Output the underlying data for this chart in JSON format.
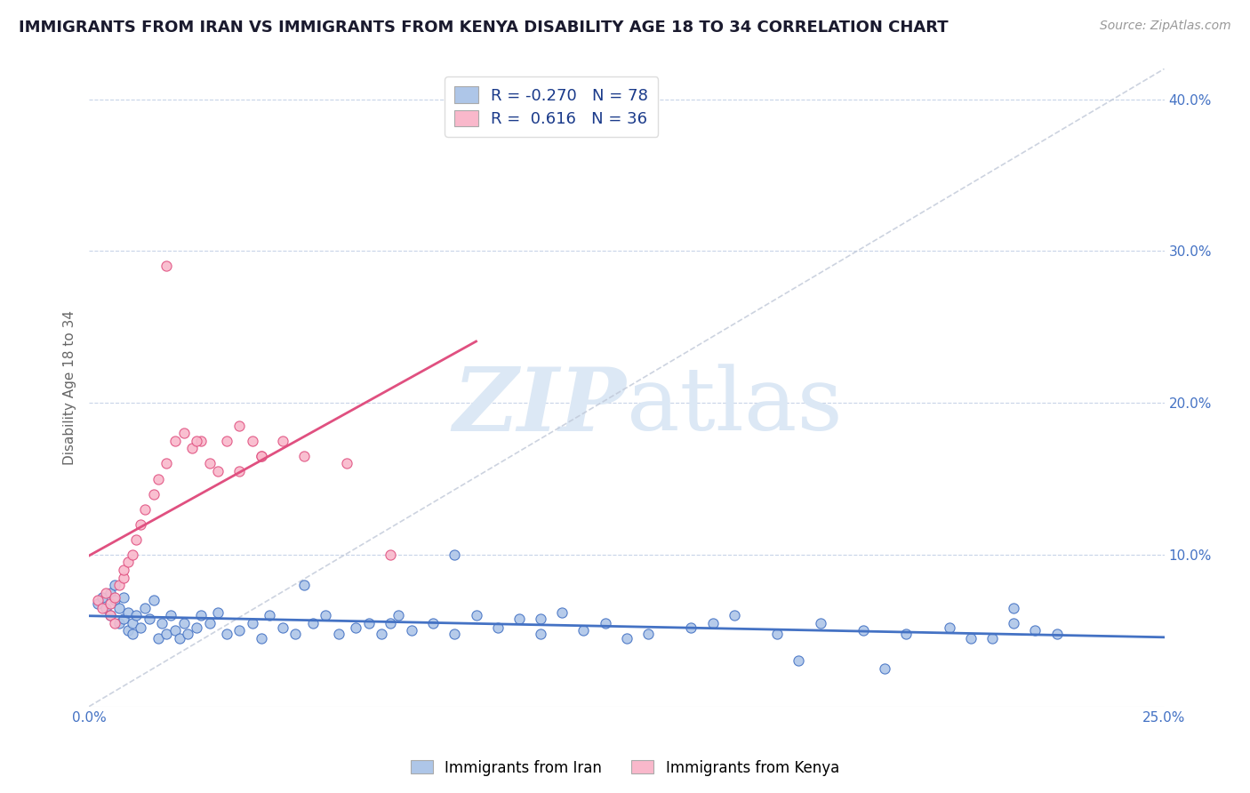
{
  "title": "IMMIGRANTS FROM IRAN VS IMMIGRANTS FROM KENYA DISABILITY AGE 18 TO 34 CORRELATION CHART",
  "source": "Source: ZipAtlas.com",
  "ylabel": "Disability Age 18 to 34",
  "xmin": 0.0,
  "xmax": 0.25,
  "ymin": 0.0,
  "ymax": 0.42,
  "yticks": [
    0.1,
    0.2,
    0.3,
    0.4
  ],
  "ytick_labels": [
    "10.0%",
    "20.0%",
    "30.0%",
    "40.0%"
  ],
  "xticks": [
    0.0,
    0.25
  ],
  "xtick_labels": [
    "0.0%",
    "25.0%"
  ],
  "iran_R": -0.27,
  "iran_N": 78,
  "kenya_R": 0.616,
  "kenya_N": 36,
  "iran_color": "#aec6e8",
  "iran_edge_color": "#4472c4",
  "kenya_color": "#f9b8cb",
  "kenya_edge_color": "#e05080",
  "background_color": "#ffffff",
  "grid_color": "#c8d4e8",
  "title_color": "#1a1a2e",
  "axis_label_color": "#666666",
  "tick_color": "#4472c4",
  "iran_line_color": "#4472c4",
  "kenya_line_color": "#e05080",
  "ref_line_color": "#c0c8d8",
  "iran_scatter_x": [
    0.002,
    0.003,
    0.004,
    0.005,
    0.005,
    0.006,
    0.006,
    0.007,
    0.007,
    0.008,
    0.008,
    0.009,
    0.009,
    0.01,
    0.01,
    0.011,
    0.012,
    0.013,
    0.014,
    0.015,
    0.016,
    0.017,
    0.018,
    0.019,
    0.02,
    0.021,
    0.022,
    0.023,
    0.025,
    0.026,
    0.028,
    0.03,
    0.032,
    0.035,
    0.038,
    0.04,
    0.042,
    0.045,
    0.048,
    0.052,
    0.055,
    0.058,
    0.062,
    0.065,
    0.068,
    0.072,
    0.075,
    0.08,
    0.085,
    0.09,
    0.095,
    0.1,
    0.105,
    0.11,
    0.115,
    0.12,
    0.13,
    0.14,
    0.15,
    0.16,
    0.17,
    0.18,
    0.19,
    0.2,
    0.21,
    0.215,
    0.22,
    0.225,
    0.05,
    0.07,
    0.085,
    0.105,
    0.125,
    0.145,
    0.165,
    0.185,
    0.205,
    0.215
  ],
  "iran_scatter_y": [
    0.068,
    0.072,
    0.065,
    0.06,
    0.075,
    0.07,
    0.08,
    0.055,
    0.065,
    0.058,
    0.072,
    0.05,
    0.062,
    0.048,
    0.055,
    0.06,
    0.052,
    0.065,
    0.058,
    0.07,
    0.045,
    0.055,
    0.048,
    0.06,
    0.05,
    0.045,
    0.055,
    0.048,
    0.052,
    0.06,
    0.055,
    0.062,
    0.048,
    0.05,
    0.055,
    0.045,
    0.06,
    0.052,
    0.048,
    0.055,
    0.06,
    0.048,
    0.052,
    0.055,
    0.048,
    0.06,
    0.05,
    0.055,
    0.048,
    0.06,
    0.052,
    0.058,
    0.048,
    0.062,
    0.05,
    0.055,
    0.048,
    0.052,
    0.06,
    0.048,
    0.055,
    0.05,
    0.048,
    0.052,
    0.045,
    0.055,
    0.05,
    0.048,
    0.08,
    0.055,
    0.1,
    0.058,
    0.045,
    0.055,
    0.03,
    0.025,
    0.045,
    0.065
  ],
  "kenya_scatter_x": [
    0.002,
    0.003,
    0.004,
    0.005,
    0.005,
    0.006,
    0.006,
    0.007,
    0.008,
    0.008,
    0.009,
    0.01,
    0.011,
    0.012,
    0.013,
    0.015,
    0.016,
    0.018,
    0.02,
    0.022,
    0.024,
    0.026,
    0.028,
    0.03,
    0.032,
    0.035,
    0.038,
    0.04,
    0.045,
    0.05,
    0.018,
    0.025,
    0.035,
    0.04,
    0.06,
    0.07
  ],
  "kenya_scatter_y": [
    0.07,
    0.065,
    0.075,
    0.06,
    0.068,
    0.072,
    0.055,
    0.08,
    0.085,
    0.09,
    0.095,
    0.1,
    0.11,
    0.12,
    0.13,
    0.14,
    0.15,
    0.16,
    0.175,
    0.18,
    0.17,
    0.175,
    0.16,
    0.155,
    0.175,
    0.185,
    0.175,
    0.165,
    0.175,
    0.165,
    0.29,
    0.175,
    0.155,
    0.165,
    0.16,
    0.1
  ]
}
